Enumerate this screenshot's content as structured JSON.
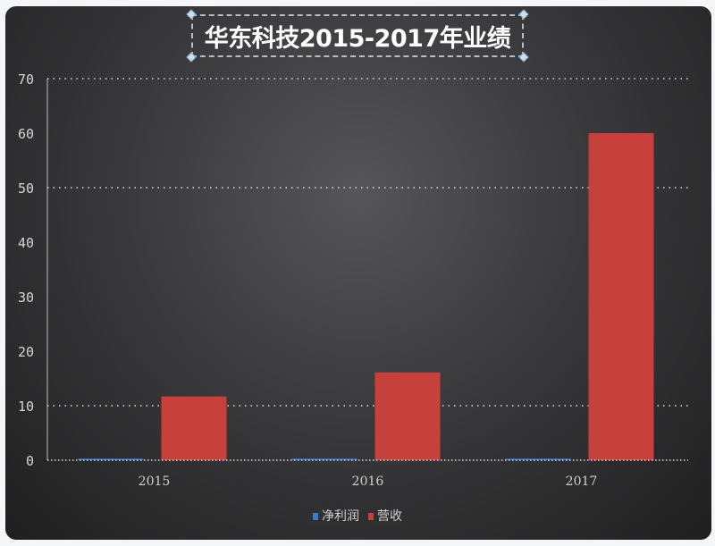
{
  "chart_data": {
    "type": "bar",
    "title": "华东科技2015-2017年业绩",
    "categories": [
      "2015",
      "2016",
      "2017"
    ],
    "series": [
      {
        "name": "净利润",
        "values": [
          0.3,
          0.3,
          0.3
        ],
        "color": "#3b78d0"
      },
      {
        "name": "营收",
        "values": [
          11.7,
          16.1,
          60.0
        ],
        "color": "#c8403c"
      }
    ],
    "ylim": [
      0,
      70
    ],
    "yticks": [
      0,
      10,
      20,
      30,
      40,
      50,
      60,
      70
    ],
    "gridlines": [
      10,
      50,
      70
    ],
    "legend": "bottom",
    "xlabel": "",
    "ylabel": ""
  }
}
